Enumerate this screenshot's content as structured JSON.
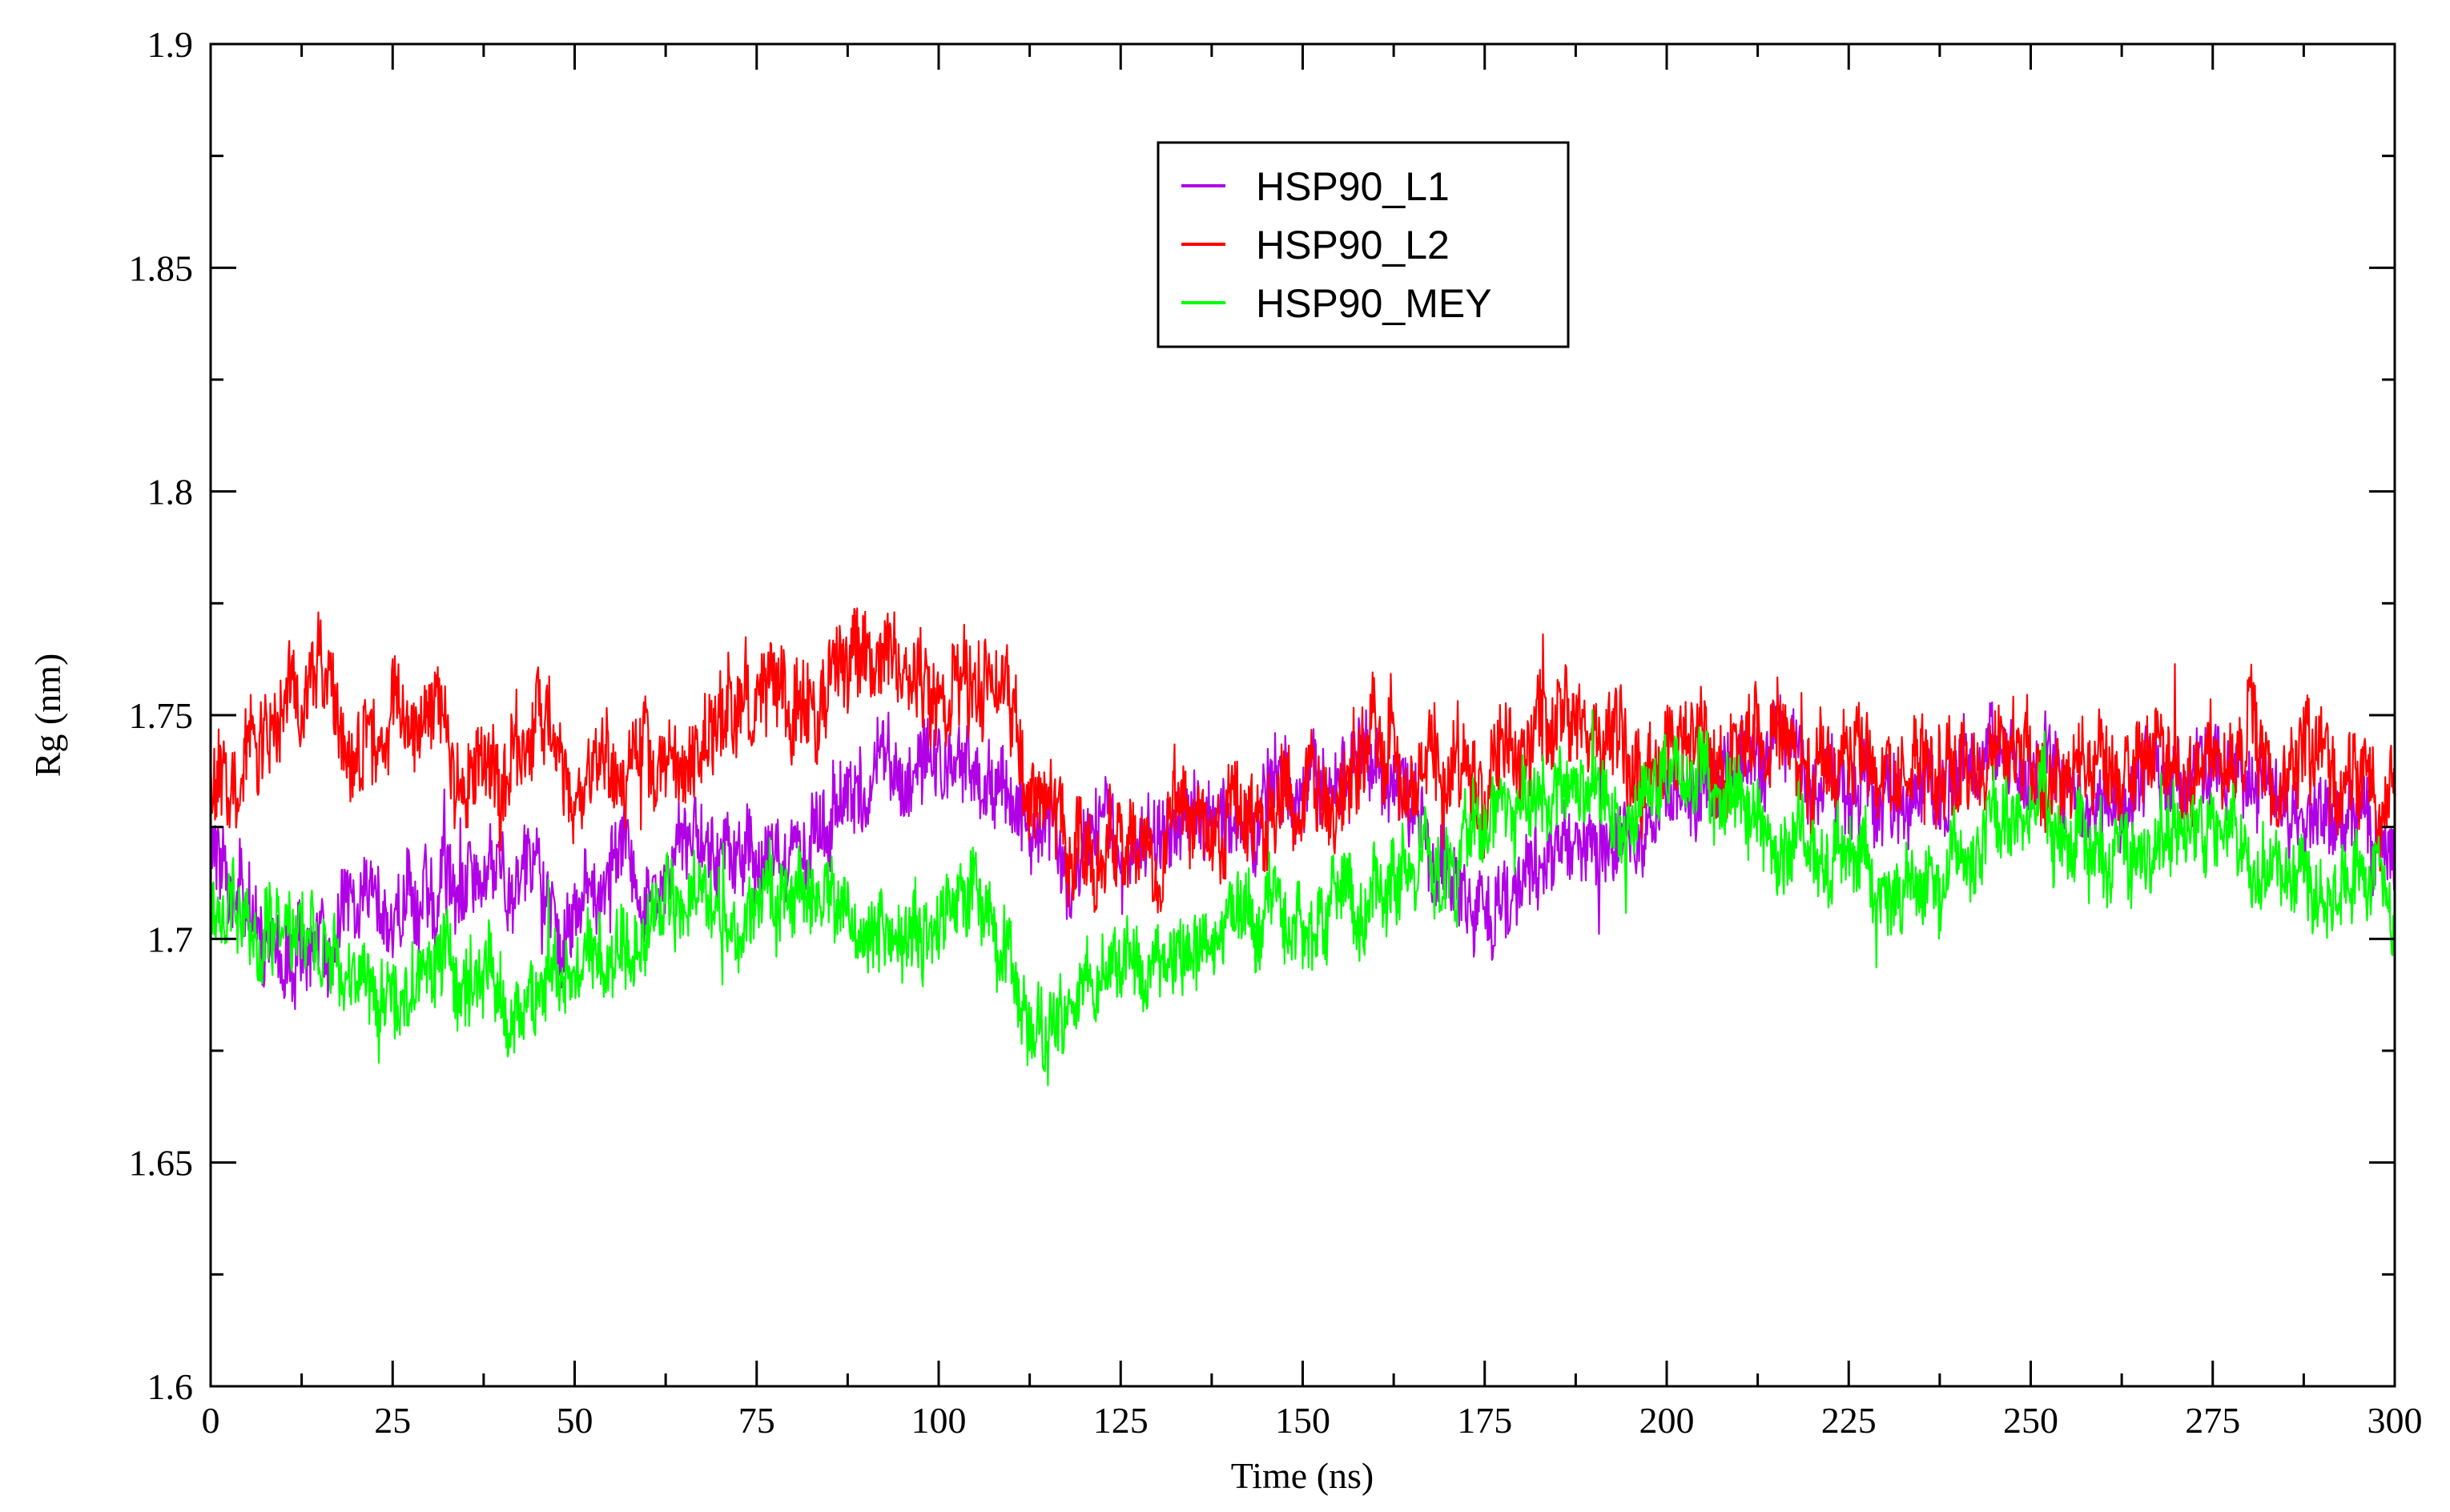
{
  "chart_data": {
    "type": "line",
    "xlabel": "Time (ns)",
    "ylabel": "Rg (nm)",
    "xlim": [
      0,
      300
    ],
    "ylim": [
      1.6,
      1.9
    ],
    "x_ticks": [
      0,
      25,
      50,
      75,
      100,
      125,
      150,
      175,
      200,
      225,
      250,
      275,
      300
    ],
    "x_tick_labels": [
      "0",
      "25",
      "50",
      "75",
      "100",
      "125",
      "150",
      "175",
      "200",
      "225",
      "250",
      "275",
      "300"
    ],
    "y_ticks": [
      1.6,
      1.65,
      1.7,
      1.75,
      1.8,
      1.85,
      1.9
    ],
    "y_tick_labels": [
      "1.6",
      "1.65",
      "1.7",
      "1.75",
      "1.8",
      "1.85",
      "1.9"
    ],
    "grid": false,
    "legend_position": "top-center",
    "series": [
      {
        "name": "HSP90_L1",
        "color": "#b000e6",
        "noise": 0.007,
        "x": [
          0,
          5,
          10,
          15,
          20,
          25,
          30,
          35,
          40,
          45,
          50,
          55,
          60,
          65,
          70,
          75,
          80,
          85,
          90,
          95,
          100,
          105,
          110,
          115,
          120,
          125,
          130,
          135,
          140,
          145,
          150,
          155,
          160,
          165,
          170,
          175,
          180,
          185,
          190,
          195,
          200,
          205,
          210,
          215,
          220,
          225,
          230,
          235,
          240,
          245,
          250,
          255,
          260,
          265,
          270,
          275,
          280,
          285,
          290,
          295,
          300
        ],
        "y": [
          1.72,
          1.705,
          1.7,
          1.698,
          1.71,
          1.705,
          1.708,
          1.71,
          1.713,
          1.712,
          1.705,
          1.716,
          1.714,
          1.718,
          1.72,
          1.718,
          1.722,
          1.725,
          1.73,
          1.735,
          1.74,
          1.738,
          1.732,
          1.722,
          1.718,
          1.722,
          1.726,
          1.728,
          1.73,
          1.732,
          1.733,
          1.735,
          1.738,
          1.73,
          1.715,
          1.71,
          1.712,
          1.72,
          1.725,
          1.722,
          1.73,
          1.738,
          1.742,
          1.74,
          1.738,
          1.735,
          1.73,
          1.734,
          1.735,
          1.742,
          1.738,
          1.735,
          1.732,
          1.734,
          1.738,
          1.742,
          1.735,
          1.73,
          1.728,
          1.725,
          1.72
        ]
      },
      {
        "name": "HSP90_L2",
        "color": "#ff0000",
        "noise": 0.008,
        "x": [
          0,
          5,
          10,
          15,
          20,
          25,
          30,
          35,
          40,
          45,
          50,
          55,
          60,
          65,
          70,
          75,
          80,
          85,
          90,
          95,
          100,
          105,
          110,
          115,
          120,
          125,
          130,
          135,
          140,
          145,
          150,
          155,
          160,
          165,
          170,
          175,
          180,
          185,
          190,
          195,
          200,
          205,
          210,
          215,
          220,
          225,
          230,
          235,
          240,
          245,
          250,
          255,
          260,
          265,
          270,
          275,
          280,
          285,
          290,
          295,
          300
        ],
        "y": [
          1.735,
          1.748,
          1.74,
          1.755,
          1.735,
          1.742,
          1.745,
          1.74,
          1.738,
          1.745,
          1.728,
          1.745,
          1.738,
          1.742,
          1.748,
          1.752,
          1.755,
          1.758,
          1.765,
          1.762,
          1.758,
          1.755,
          1.748,
          1.728,
          1.718,
          1.725,
          1.722,
          1.728,
          1.73,
          1.728,
          1.732,
          1.738,
          1.75,
          1.735,
          1.742,
          1.738,
          1.745,
          1.745,
          1.742,
          1.74,
          1.745,
          1.742,
          1.745,
          1.748,
          1.74,
          1.738,
          1.735,
          1.738,
          1.74,
          1.745,
          1.742,
          1.74,
          1.738,
          1.742,
          1.738,
          1.74,
          1.738,
          1.735,
          1.74,
          1.735,
          1.73
        ]
      },
      {
        "name": "HSP90_MEY",
        "color": "#00ff00",
        "noise": 0.007,
        "x": [
          0,
          5,
          10,
          15,
          20,
          25,
          30,
          35,
          40,
          45,
          50,
          55,
          60,
          65,
          70,
          75,
          80,
          85,
          90,
          95,
          100,
          105,
          110,
          115,
          120,
          125,
          130,
          135,
          140,
          145,
          150,
          155,
          160,
          165,
          170,
          175,
          180,
          185,
          190,
          195,
          200,
          205,
          210,
          215,
          220,
          225,
          230,
          235,
          240,
          245,
          250,
          255,
          260,
          265,
          270,
          275,
          280,
          285,
          290,
          295,
          300
        ],
        "y": [
          1.708,
          1.702,
          1.705,
          1.698,
          1.692,
          1.69,
          1.692,
          1.69,
          1.688,
          1.69,
          1.69,
          1.694,
          1.7,
          1.704,
          1.706,
          1.708,
          1.712,
          1.708,
          1.706,
          1.704,
          1.702,
          1.708,
          1.695,
          1.68,
          1.688,
          1.694,
          1.696,
          1.698,
          1.7,
          1.702,
          1.7,
          1.705,
          1.71,
          1.718,
          1.722,
          1.725,
          1.728,
          1.732,
          1.735,
          1.732,
          1.738,
          1.735,
          1.73,
          1.725,
          1.722,
          1.718,
          1.71,
          1.712,
          1.716,
          1.722,
          1.73,
          1.725,
          1.72,
          1.718,
          1.72,
          1.72,
          1.718,
          1.715,
          1.715,
          1.712,
          1.708
        ]
      }
    ]
  }
}
